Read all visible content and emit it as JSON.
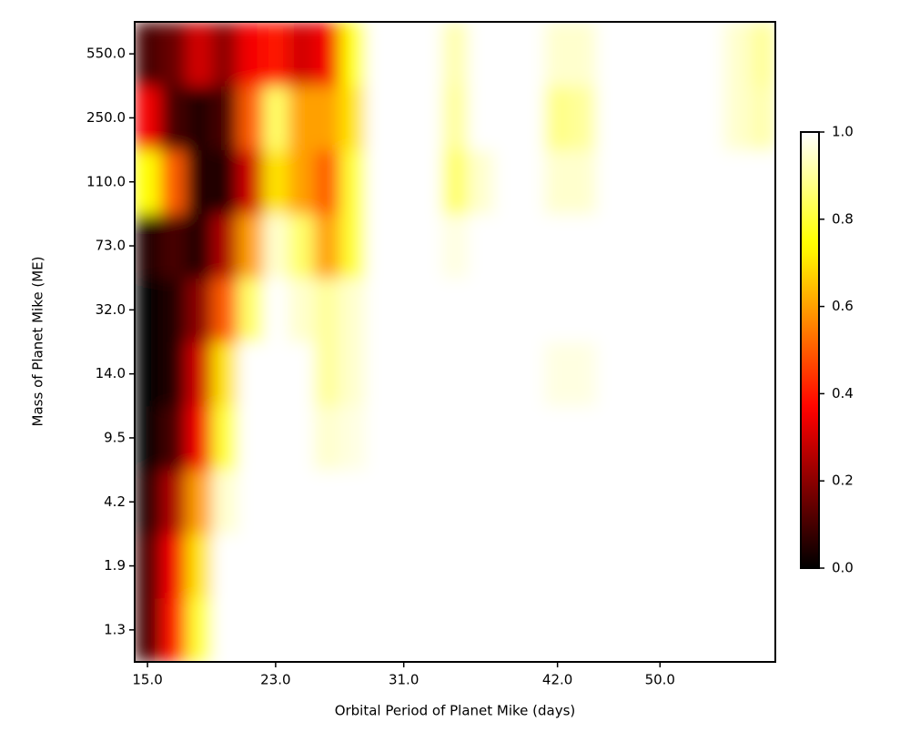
{
  "chart_data": {
    "type": "heatmap",
    "xlabel": "Orbital Period of Planet Mike (days)",
    "ylabel": "Mass of Planet Mike (ME)",
    "x_categories": [
      "15.0",
      null,
      null,
      null,
      null,
      "23.0",
      null,
      null,
      null,
      null,
      "31.0",
      null,
      null,
      null,
      null,
      null,
      "42.0",
      null,
      null,
      null,
      "50.0",
      null,
      null,
      null,
      null
    ],
    "y_categories": [
      "1.3",
      "1.9",
      "4.2",
      "9.5",
      "14.0",
      "32.0",
      "73.0",
      "110.0",
      "250.0",
      "550.0"
    ],
    "z": [
      [
        0.1,
        0.4,
        0.8,
        1,
        1,
        1,
        1,
        1,
        1,
        1,
        1,
        1,
        1,
        1,
        1,
        1,
        1,
        1,
        1,
        1,
        1,
        1,
        1,
        1,
        1
      ],
      [
        0.1,
        0.35,
        0.7,
        1,
        1,
        1,
        1,
        1,
        1,
        1,
        1,
        1,
        1,
        1,
        1,
        1,
        1,
        1,
        1,
        1,
        1,
        1,
        1,
        1,
        1
      ],
      [
        0.05,
        0.25,
        0.6,
        0.95,
        1,
        1,
        1,
        1,
        1,
        1,
        1,
        1,
        1,
        1,
        1,
        1,
        1,
        1,
        1,
        1,
        1,
        1,
        1,
        1,
        1
      ],
      [
        0.0,
        0.1,
        0.35,
        0.8,
        1,
        1,
        1,
        0.95,
        0.97,
        1,
        1,
        1,
        1,
        1,
        1,
        1,
        1,
        1,
        1,
        1,
        1,
        1,
        1,
        1,
        1
      ],
      [
        0.0,
        0.05,
        0.3,
        0.7,
        1,
        1,
        1,
        0.9,
        0.95,
        1,
        1,
        1,
        1,
        1,
        1,
        1,
        0.97,
        0.97,
        1,
        1,
        1,
        1,
        1,
        1,
        1
      ],
      [
        0.0,
        0.05,
        0.2,
        0.5,
        0.85,
        1,
        0.95,
        0.9,
        0.95,
        1,
        1,
        1,
        1,
        1,
        1,
        1,
        1,
        1,
        1,
        1,
        1,
        1,
        1,
        1,
        1
      ],
      [
        0.05,
        0.1,
        0.05,
        0.25,
        0.6,
        0.95,
        0.85,
        0.6,
        0.8,
        1,
        1,
        1,
        0.97,
        1,
        1,
        1,
        1,
        1,
        1,
        1,
        1,
        1,
        1,
        1,
        1
      ],
      [
        0.75,
        0.5,
        0.05,
        0.05,
        0.3,
        0.7,
        0.6,
        0.5,
        0.8,
        1,
        1,
        1,
        0.85,
        0.95,
        1,
        1,
        0.95,
        0.95,
        1,
        1,
        1,
        1,
        1,
        1,
        1
      ],
      [
        0.35,
        0.1,
        0.05,
        0.1,
        0.5,
        0.85,
        0.6,
        0.6,
        0.7,
        1,
        1,
        1,
        0.9,
        1,
        1,
        1,
        0.88,
        0.9,
        1,
        1,
        1,
        1,
        1,
        0.95,
        0.92
      ],
      [
        0.1,
        0.15,
        0.3,
        0.2,
        0.35,
        0.4,
        0.3,
        0.35,
        0.75,
        1,
        1,
        1,
        0.92,
        1,
        1,
        1,
        0.95,
        0.95,
        1,
        1,
        1,
        1,
        1,
        0.95,
        0.9
      ]
    ],
    "colormap": "hot",
    "colorbar_lim": [
      0,
      1
    ],
    "colorbar_ticks": [
      {
        "value": 0,
        "label": "0.0"
      },
      {
        "value": 0.2,
        "label": "0.2"
      },
      {
        "value": 0.4,
        "label": "0.4"
      },
      {
        "value": 0.6,
        "label": "0.6"
      },
      {
        "value": 0.8,
        "label": "0.8"
      },
      {
        "value": 1,
        "label": "1.0"
      }
    ]
  }
}
